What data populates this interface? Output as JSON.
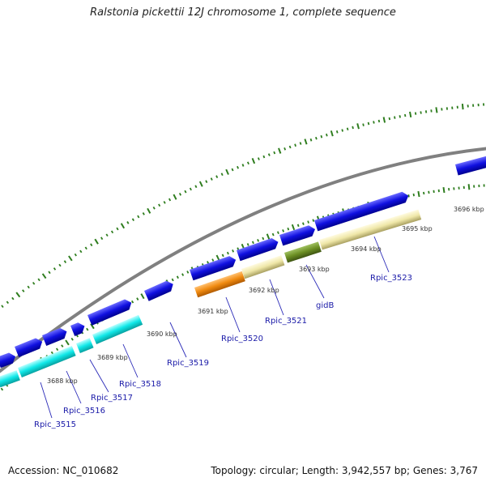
{
  "title": "Ralstonia pickettii 12J chromosome 1, complete sequence",
  "footer": {
    "accession": "Accession: NC_010682",
    "topology": "Topology: circular; Length: 3,942,557 bp; Genes: 3,767"
  },
  "colors": {
    "backbone": "#808080",
    "cds": "#1010e0",
    "cds_alt": "#10e8e8",
    "orange": "#f08a10",
    "tan": "#efe7a8",
    "olive": "#6b8e23",
    "tick": "#2e7d1e",
    "label": "#1a1aa8"
  },
  "kbp_labels": [
    "3688 kbp",
    "3689 kbp",
    "3690 kbp",
    "3691 kbp",
    "3692 kbp",
    "3693 kbp",
    "3694 kbp",
    "3695 kbp",
    "3696 kbp"
  ],
  "gene_labels": [
    "Rpic_3515",
    "Rpic_3516",
    "Rpic_3517",
    "Rpic_3518",
    "Rpic_3519",
    "Rpic_3520",
    "Rpic_3521",
    "gidB",
    "Rpic_3523"
  ]
}
